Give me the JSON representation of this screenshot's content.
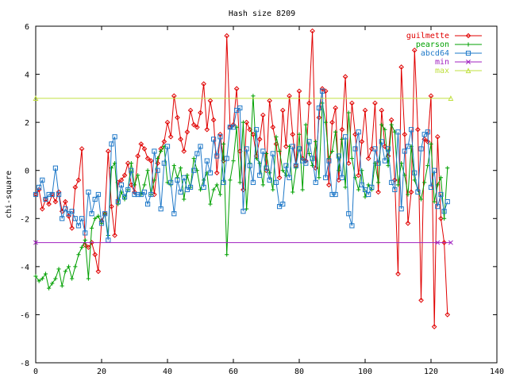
{
  "chart_data": {
    "type": "line",
    "title": "Hash size 8209",
    "xlabel": "",
    "ylabel": "chi-square",
    "xlim": [
      0,
      140
    ],
    "ylim": [
      -8,
      6
    ],
    "x_ticks": [
      "0",
      "20",
      "40",
      "60",
      "80",
      "100",
      "120",
      "140"
    ],
    "y_ticks": [
      "-8",
      "-6",
      "-4",
      "-2",
      "0",
      "2",
      "4",
      "6"
    ],
    "grid": false,
    "legend_position": "top-right",
    "series": [
      {
        "name": "guilmette",
        "color": "#e00000",
        "marker": "diamond",
        "x": [
          0,
          1,
          2,
          3,
          4,
          5,
          6,
          7,
          8,
          9,
          10,
          11,
          12,
          13,
          14,
          15,
          16,
          17,
          18,
          19,
          20,
          21,
          22,
          23,
          24,
          25,
          26,
          27,
          28,
          29,
          30,
          31,
          32,
          33,
          34,
          35,
          36,
          37,
          38,
          39,
          40,
          41,
          42,
          43,
          44,
          45,
          46,
          47,
          48,
          49,
          50,
          51,
          52,
          53,
          54,
          55,
          56,
          57,
          58,
          59,
          60,
          61,
          62,
          63,
          64,
          65,
          66,
          67,
          68,
          69,
          70,
          71,
          72,
          73,
          74,
          75,
          76,
          77,
          78,
          79,
          80,
          81,
          82,
          83,
          84,
          85,
          86,
          87,
          88,
          89,
          90,
          91,
          92,
          93,
          94,
          95,
          96,
          97,
          98,
          99,
          100,
          101,
          102,
          103,
          104,
          105,
          106,
          107,
          108,
          109,
          110,
          111,
          112,
          113,
          114,
          115,
          116,
          117,
          118,
          119,
          120,
          121,
          122,
          123,
          124,
          125
        ],
        "y": [
          -1.0,
          -0.8,
          -1.6,
          -1.2,
          -1.4,
          -1.0,
          -1.3,
          -0.9,
          -1.7,
          -1.3,
          -1.9,
          -2.4,
          -0.7,
          -0.4,
          0.9,
          -3.1,
          -3.2,
          -3.0,
          -3.5,
          -4.2,
          -2.1,
          -1.8,
          0.8,
          -1.5,
          -2.7,
          -0.5,
          -0.4,
          -0.2,
          0.3,
          -0.6,
          -0.9,
          0.6,
          1.1,
          0.9,
          0.5,
          0.4,
          -1.0,
          0.3,
          0.9,
          1.2,
          2.0,
          1.4,
          3.1,
          2.2,
          1.3,
          0.8,
          1.6,
          2.5,
          1.9,
          1.8,
          2.4,
          3.6,
          1.7,
          2.9,
          2.1,
          -0.1,
          1.5,
          0.4,
          5.6,
          1.8,
          1.9,
          3.4,
          0.8,
          -0.8,
          2.0,
          1.7,
          1.5,
          0.6,
          1.3,
          2.3,
          0.0,
          2.9,
          1.8,
          1.1,
          -0.3,
          2.5,
          1.0,
          3.1,
          1.5,
          0.2,
          3.3,
          0.5,
          0.4,
          2.8,
          5.8,
          0.1,
          2.2,
          3.4,
          3.3,
          -0.6,
          2.0,
          2.6,
          -0.4,
          1.7,
          3.9,
          0.3,
          2.8,
          1.5,
          -0.2,
          1.2,
          2.5,
          0.5,
          0.9,
          2.8,
          -0.9,
          2.5,
          1.0,
          0.6,
          2.1,
          -0.4,
          -4.3,
          4.3,
          1.5,
          -2.2,
          -0.9,
          5.0,
          1.7,
          -5.4,
          1.3,
          1.2,
          3.1,
          -6.5,
          1.4,
          -2.0,
          -3.0,
          -6.0
        ]
      },
      {
        "name": "pearson",
        "color": "#00a000",
        "marker": "plus",
        "x": [
          0,
          1,
          2,
          3,
          4,
          5,
          6,
          7,
          8,
          9,
          10,
          11,
          12,
          13,
          14,
          15,
          16,
          17,
          18,
          19,
          20,
          21,
          22,
          23,
          24,
          25,
          26,
          27,
          28,
          29,
          30,
          31,
          32,
          33,
          34,
          35,
          36,
          37,
          38,
          39,
          40,
          41,
          42,
          43,
          44,
          45,
          46,
          47,
          48,
          49,
          50,
          51,
          52,
          53,
          54,
          55,
          56,
          57,
          58,
          59,
          60,
          61,
          62,
          63,
          64,
          65,
          66,
          67,
          68,
          69,
          70,
          71,
          72,
          73,
          74,
          75,
          76,
          77,
          78,
          79,
          80,
          81,
          82,
          83,
          84,
          85,
          86,
          87,
          88,
          89,
          90,
          91,
          92,
          93,
          94,
          95,
          96,
          97,
          98,
          99,
          100,
          101,
          102,
          103,
          104,
          105,
          106,
          107,
          108,
          109,
          110,
          111,
          112,
          113,
          114,
          115,
          116,
          117,
          118,
          119,
          120,
          121,
          122,
          123,
          124,
          125
        ],
        "y": [
          -4.4,
          -4.6,
          -4.5,
          -4.3,
          -4.9,
          -4.7,
          -4.5,
          -4.1,
          -4.8,
          -4.2,
          -4.0,
          -4.5,
          -4.0,
          -3.5,
          -3.2,
          -2.9,
          -4.5,
          -2.4,
          -2.0,
          -1.9,
          -2.2,
          -1.8,
          -2.7,
          0.1,
          0.3,
          -1.4,
          -0.9,
          -1.2,
          -0.8,
          0.3,
          -0.6,
          -0.2,
          -1.0,
          -0.6,
          0.0,
          -1.0,
          -0.4,
          0.5,
          0.8,
          1.0,
          -0.5,
          -0.6,
          0.2,
          -0.3,
          0.1,
          -1.2,
          -0.2,
          -0.7,
          0.5,
          0.0,
          -0.8,
          -0.4,
          -0.1,
          -1.4,
          -0.8,
          -0.6,
          -1.0,
          1.1,
          -3.5,
          -0.4,
          0.4,
          1.8,
          -0.5,
          2.0,
          -1.6,
          0.3,
          3.1,
          0.5,
          0.3,
          -0.6,
          0.7,
          -0.1,
          -0.8,
          1.4,
          0.8,
          0.0,
          -0.2,
          1.0,
          -0.9,
          0.1,
          1.5,
          -0.8,
          1.9,
          0.7,
          0.2,
          1.2,
          -0.3,
          2.8,
          2.0,
          0.5,
          0.8,
          1.6,
          0.0,
          1.3,
          -0.7,
          2.4,
          0.5,
          -0.3,
          -0.8,
          0.0,
          -1.1,
          -0.6,
          -0.8,
          0.3,
          -0.5,
          1.9,
          1.7,
          0.2,
          1.9,
          1.6,
          -0.6,
          0.3,
          -0.2,
          -1.0,
          1.0,
          -0.4,
          -0.8,
          -1.2,
          -0.5,
          0.2,
          1.1,
          -1.3,
          -0.6,
          -0.3,
          -2.0,
          0.1
        ]
      },
      {
        "name": "abcd64",
        "color": "#1e78c8",
        "marker": "square",
        "x": [
          0,
          1,
          2,
          3,
          4,
          5,
          6,
          7,
          8,
          9,
          10,
          11,
          12,
          13,
          14,
          15,
          16,
          17,
          18,
          19,
          20,
          21,
          22,
          23,
          24,
          25,
          26,
          27,
          28,
          29,
          30,
          31,
          32,
          33,
          34,
          35,
          36,
          37,
          38,
          39,
          40,
          41,
          42,
          43,
          44,
          45,
          46,
          47,
          48,
          49,
          50,
          51,
          52,
          53,
          54,
          55,
          56,
          57,
          58,
          59,
          60,
          61,
          62,
          63,
          64,
          65,
          66,
          67,
          68,
          69,
          70,
          71,
          72,
          73,
          74,
          75,
          76,
          77,
          78,
          79,
          80,
          81,
          82,
          83,
          84,
          85,
          86,
          87,
          88,
          89,
          90,
          91,
          92,
          93,
          94,
          95,
          96,
          97,
          98,
          99,
          100,
          101,
          102,
          103,
          104,
          105,
          106,
          107,
          108,
          109,
          110,
          111,
          112,
          113,
          114,
          115,
          116,
          117,
          118,
          119,
          120,
          121,
          122,
          123,
          124,
          125
        ],
        "y": [
          -1.0,
          -0.7,
          -0.4,
          -1.2,
          -1.0,
          -1.0,
          0.1,
          -1.0,
          -2.0,
          -1.6,
          -1.8,
          -1.7,
          -2.0,
          -2.3,
          -2.0,
          -2.6,
          -0.9,
          -1.8,
          -1.2,
          -1.0,
          -2.2,
          -1.8,
          -2.9,
          1.1,
          1.4,
          -1.3,
          -0.6,
          -1.1,
          -0.8,
          0.0,
          -1.0,
          -1.0,
          -1.0,
          -0.9,
          -1.4,
          -1.0,
          0.8,
          0.0,
          -1.6,
          0.3,
          1.0,
          -0.5,
          -1.8,
          -0.4,
          -0.9,
          -0.3,
          -0.8,
          -0.7,
          0.0,
          0.7,
          1.0,
          -0.7,
          0.4,
          -0.1,
          1.3,
          0.6,
          1.4,
          -0.5,
          0.5,
          1.8,
          1.8,
          2.5,
          2.6,
          -1.7,
          0.9,
          0.2,
          -0.5,
          1.7,
          -0.2,
          0.8,
          0.1,
          -0.4,
          0.7,
          -0.5,
          -1.5,
          -1.4,
          0.2,
          -0.3,
          1.0,
          0.2,
          0.9,
          0.4,
          0.3,
          1.2,
          0.5,
          -0.5,
          2.6,
          3.3,
          -0.3,
          0.4,
          -1.0,
          -1.0,
          0.6,
          -0.3,
          1.4,
          -1.8,
          -2.3,
          0.9,
          1.6,
          -0.6,
          -0.8,
          -1.0,
          -0.7,
          0.9,
          0.3,
          1.2,
          0.4,
          0.9,
          -0.5,
          -0.8,
          1.6,
          -1.6,
          0.8,
          1.0,
          1.7,
          -0.1,
          -0.9,
          0.9,
          1.5,
          1.6,
          -0.7,
          0.0,
          -1.5,
          -1.0,
          -1.7,
          -1.3
        ]
      },
      {
        "name": "min",
        "color": "#a020c0",
        "marker": "x",
        "x": [
          0,
          122,
          126
        ],
        "y": [
          -3.0,
          -3.0,
          -3.0
        ]
      },
      {
        "name": "max",
        "color": "#c0e040",
        "marker": "triangle",
        "x": [
          0,
          126
        ],
        "y": [
          3.0,
          3.0
        ]
      }
    ]
  }
}
